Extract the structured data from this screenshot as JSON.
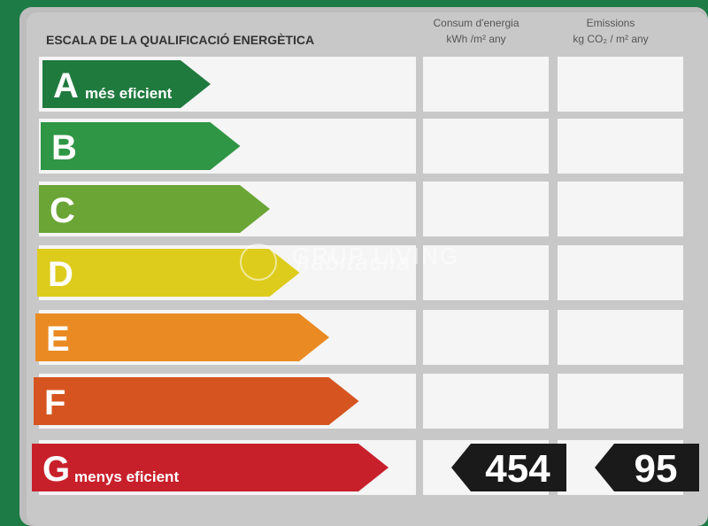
{
  "header": {
    "title": "ESCALA DE LA QUALIFICACIÓ ENERGÈTICA",
    "consumption": {
      "title": "Consum d'energia",
      "unit": "kWh /m² any"
    },
    "emissions": {
      "title": "Emissions",
      "unit": "kg CO₂ / m² any"
    }
  },
  "rows": [
    {
      "letter": "A",
      "note": "més eficient",
      "color": "#1f7a3e"
    },
    {
      "letter": "B",
      "color": "#2f9645"
    },
    {
      "letter": "C",
      "color": "#6aa535"
    },
    {
      "letter": "D",
      "color": "#ddcc1c"
    },
    {
      "letter": "E",
      "color": "#ea8a22"
    },
    {
      "letter": "F",
      "color": "#d6541f"
    },
    {
      "letter": "G",
      "note": "menys eficient",
      "color": "#c8202b",
      "consumption": "454",
      "emissions": "95"
    }
  ],
  "watermark": {
    "brand": "GRUP LIVING",
    "site": "habitaclia"
  }
}
